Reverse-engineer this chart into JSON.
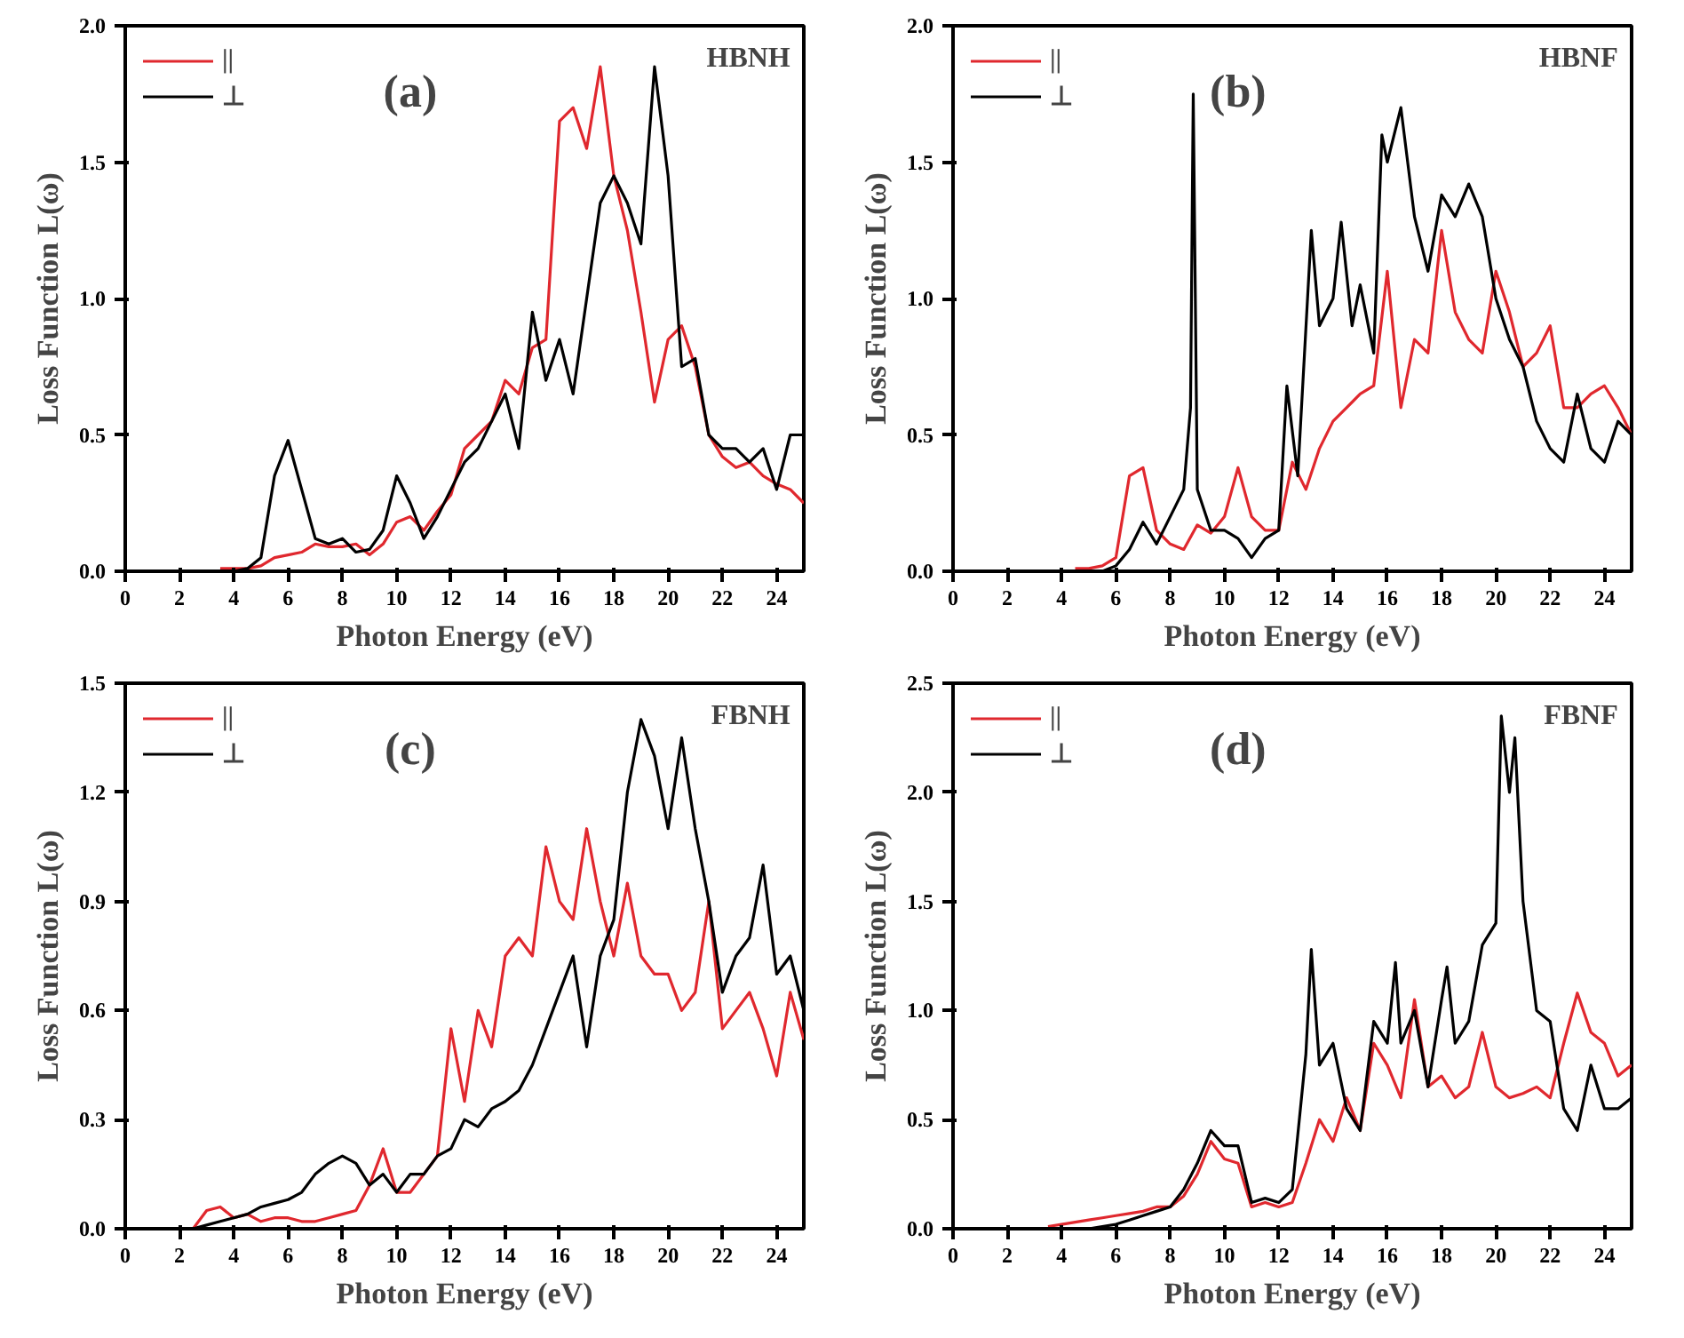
{
  "chart_data": [
    {
      "type": "line",
      "annotations": [
        "(a)",
        "HBNH"
      ],
      "xlabel": "Photon Energy (eV)",
      "ylabel": "Loss Function L(ω)",
      "xlim": [
        0,
        25
      ],
      "ylim": [
        0,
        2.0
      ],
      "xticks": [
        0,
        2,
        4,
        6,
        8,
        10,
        12,
        14,
        16,
        18,
        20,
        22,
        24
      ],
      "yticks": [
        {
          "value": 0,
          "label": "0.0"
        },
        0.5,
        {
          "value": 1,
          "label": "1.0"
        },
        1.5,
        {
          "value": 2,
          "label": "2.0"
        }
      ],
      "grid": false,
      "legend": "top left",
      "x": [
        3.5,
        4,
        4.5,
        5,
        5.5,
        6,
        6.5,
        7,
        7.5,
        8,
        8.5,
        9,
        9.5,
        10,
        10.5,
        11,
        11.5,
        12,
        12.5,
        13,
        13.5,
        14,
        14.5,
        15,
        15.5,
        16,
        16.5,
        17,
        17.5,
        18,
        18.5,
        19,
        19.5,
        20,
        20.5,
        21,
        21.5,
        22,
        22.5,
        23,
        23.5,
        24,
        24.5,
        25
      ],
      "series": [
        {
          "name": "||",
          "color": "#e0282e",
          "values": [
            0.01,
            0.01,
            0.01,
            0.02,
            0.05,
            0.06,
            0.07,
            0.1,
            0.09,
            0.09,
            0.1,
            0.06,
            0.1,
            0.18,
            0.2,
            0.15,
            0.22,
            0.28,
            0.45,
            0.5,
            0.55,
            0.7,
            0.65,
            0.82,
            0.85,
            1.65,
            1.7,
            1.55,
            1.85,
            1.45,
            1.25,
            0.95,
            0.62,
            0.85,
            0.9,
            0.75,
            0.5,
            0.42,
            0.38,
            0.4,
            0.35,
            0.32,
            0.3,
            0.25
          ]
        },
        {
          "name": "⊥",
          "color": "#000000",
          "values": [
            0,
            0,
            0.01,
            0.05,
            0.35,
            0.48,
            0.3,
            0.12,
            0.1,
            0.12,
            0.07,
            0.08,
            0.15,
            0.35,
            0.25,
            0.12,
            0.2,
            0.3,
            0.4,
            0.45,
            0.55,
            0.65,
            0.45,
            0.95,
            0.7,
            0.85,
            0.65,
            1.0,
            1.35,
            1.45,
            1.35,
            1.2,
            1.85,
            1.45,
            0.75,
            0.78,
            0.5,
            0.45,
            0.45,
            0.4,
            0.45,
            0.3,
            0.5,
            0.5
          ]
        }
      ]
    },
    {
      "type": "line",
      "annotations": [
        "(b)",
        "HBNF"
      ],
      "xlabel": "Photon Energy (eV)",
      "ylabel": "Loss Function L(ω)",
      "xlim": [
        0,
        25
      ],
      "ylim": [
        0,
        2.0
      ],
      "xticks": [
        0,
        2,
        4,
        6,
        8,
        10,
        12,
        14,
        16,
        18,
        20,
        22,
        24
      ],
      "yticks": [
        {
          "value": 0,
          "label": "0.0"
        },
        0.5,
        {
          "value": 1,
          "label": "1.0"
        },
        1.5,
        {
          "value": 2,
          "label": "2.0"
        }
      ],
      "grid": false,
      "legend": "top left",
      "x": [
        4.5,
        5,
        5.5,
        6,
        6.5,
        7,
        7.5,
        8,
        8.5,
        9,
        9.5,
        10,
        10.5,
        11,
        11.5,
        12,
        12.5,
        13,
        13.5,
        14,
        14.5,
        15,
        15.5,
        16,
        16.5,
        17,
        17.5,
        18,
        18.5,
        19,
        19.5,
        20,
        20.5,
        21,
        21.5,
        22,
        22.5,
        23,
        23.5,
        24,
        24.5,
        25
      ],
      "series": [
        {
          "name": "||",
          "color": "#e0282e",
          "values": [
            0.01,
            0.01,
            0.02,
            0.05,
            0.35,
            0.38,
            0.15,
            0.1,
            0.08,
            0.17,
            0.14,
            0.2,
            0.38,
            0.2,
            0.15,
            0.15,
            0.4,
            0.3,
            0.45,
            0.55,
            0.6,
            0.65,
            0.68,
            1.1,
            0.6,
            0.85,
            0.8,
            1.25,
            0.95,
            0.85,
            0.8,
            1.1,
            0.95,
            0.75,
            0.8,
            0.9,
            0.6,
            0.6,
            0.65,
            0.68,
            0.6,
            0.5
          ]
        },
        {
          "name": "⊥",
          "color": "#000000",
          "x": [
            4.5,
            5,
            5.5,
            6,
            6.5,
            7,
            7.5,
            8,
            8.5,
            8.75,
            8.85,
            9,
            9.5,
            10,
            10.5,
            11,
            11.5,
            12,
            12.3,
            12.7,
            13.2,
            13.5,
            14,
            14.3,
            14.7,
            15,
            15.5,
            15.8,
            16,
            16.5,
            17,
            17.5,
            18,
            18.5,
            19,
            19.5,
            20,
            20.5,
            21,
            21.5,
            22,
            22.5,
            23,
            23.5,
            24,
            24.5,
            25
          ],
          "values": [
            0,
            0,
            0,
            0.02,
            0.08,
            0.18,
            0.1,
            0.2,
            0.3,
            0.6,
            1.75,
            0.3,
            0.15,
            0.15,
            0.12,
            0.05,
            0.12,
            0.15,
            0.68,
            0.35,
            1.25,
            0.9,
            1.0,
            1.28,
            0.9,
            1.05,
            0.8,
            1.6,
            1.5,
            1.7,
            1.3,
            1.1,
            1.38,
            1.3,
            1.42,
            1.3,
            1.0,
            0.85,
            0.75,
            0.55,
            0.45,
            0.4,
            0.65,
            0.45,
            0.4,
            0.55,
            0.5
          ]
        }
      ]
    },
    {
      "type": "line",
      "annotations": [
        "(c)",
        "FBNH"
      ],
      "xlabel": "Photon Energy (eV)",
      "ylabel": "Loss Function L(ω)",
      "xlim": [
        0,
        25
      ],
      "ylim": [
        0,
        1.5
      ],
      "xticks": [
        0,
        2,
        4,
        6,
        8,
        10,
        12,
        14,
        16,
        18,
        20,
        22,
        24
      ],
      "yticks": [
        {
          "value": 0,
          "label": "0.0"
        },
        0.3,
        0.6,
        0.9,
        1.2,
        1.5
      ],
      "grid": false,
      "legend": "top left",
      "x": [
        2,
        2.5,
        3,
        3.5,
        4,
        4.5,
        5,
        5.5,
        6,
        6.5,
        7,
        7.5,
        8,
        8.5,
        9,
        9.5,
        10,
        10.5,
        11,
        11.5,
        12,
        12.5,
        13,
        13.5,
        14,
        14.5,
        15,
        15.5,
        16,
        16.5,
        17,
        17.5,
        18,
        18.5,
        19,
        19.5,
        20,
        20.5,
        21,
        21.5,
        22,
        22.5,
        23,
        23.5,
        24,
        24.5,
        25
      ],
      "series": [
        {
          "name": "||",
          "color": "#e0282e",
          "values": [
            0,
            0,
            0.05,
            0.06,
            0.03,
            0.04,
            0.02,
            0.03,
            0.03,
            0.02,
            0.02,
            0.03,
            0.04,
            0.05,
            0.12,
            0.22,
            0.1,
            0.1,
            0.15,
            0.2,
            0.55,
            0.35,
            0.6,
            0.5,
            0.75,
            0.8,
            0.75,
            1.05,
            0.9,
            0.85,
            1.1,
            0.9,
            0.75,
            0.95,
            0.75,
            0.7,
            0.7,
            0.6,
            0.65,
            0.9,
            0.55,
            0.6,
            0.65,
            0.55,
            0.42,
            0.65,
            0.52
          ]
        },
        {
          "name": "⊥",
          "color": "#000000",
          "values": [
            0,
            0,
            0.01,
            0.02,
            0.03,
            0.04,
            0.06,
            0.07,
            0.08,
            0.1,
            0.15,
            0.18,
            0.2,
            0.18,
            0.12,
            0.15,
            0.1,
            0.15,
            0.15,
            0.2,
            0.22,
            0.3,
            0.28,
            0.33,
            0.35,
            0.38,
            0.45,
            0.55,
            0.65,
            0.75,
            0.5,
            0.75,
            0.85,
            1.2,
            1.4,
            1.3,
            1.1,
            1.35,
            1.1,
            0.9,
            0.65,
            0.75,
            0.8,
            1.0,
            0.7,
            0.75,
            0.6
          ]
        }
      ]
    },
    {
      "type": "line",
      "annotations": [
        "(d)",
        "FBNF"
      ],
      "xlabel": "Photon Energy (eV)",
      "ylabel": "Loss Function L(ω)",
      "xlim": [
        0,
        25
      ],
      "ylim": [
        0,
        2.5
      ],
      "xticks": [
        0,
        2,
        4,
        6,
        8,
        10,
        12,
        14,
        16,
        18,
        20,
        22,
        24
      ],
      "yticks": [
        {
          "value": 0,
          "label": "0.0"
        },
        0.5,
        {
          "value": 1,
          "label": "1.0"
        },
        1.5,
        {
          "value": 2,
          "label": "2.0"
        },
        2.5
      ],
      "grid": false,
      "legend": "top left",
      "x": [
        3.5,
        4,
        4.5,
        5,
        5.5,
        6,
        6.5,
        7,
        7.5,
        8,
        8.5,
        9,
        9.5,
        10,
        10.5,
        11,
        11.5,
        12,
        12.5,
        13,
        13.5,
        14,
        14.5,
        15,
        15.5,
        16,
        16.5,
        17,
        17.5,
        18,
        18.5,
        19,
        19.5,
        20,
        20.5,
        21,
        21.5,
        22,
        22.5,
        23,
        23.5,
        24,
        24.5,
        25
      ],
      "series": [
        {
          "name": "||",
          "color": "#e0282e",
          "values": [
            0.01,
            0.02,
            0.03,
            0.04,
            0.05,
            0.06,
            0.07,
            0.08,
            0.1,
            0.1,
            0.15,
            0.25,
            0.4,
            0.32,
            0.3,
            0.1,
            0.12,
            0.1,
            0.12,
            0.3,
            0.5,
            0.4,
            0.6,
            0.45,
            0.85,
            0.75,
            0.6,
            1.05,
            0.65,
            0.7,
            0.6,
            0.65,
            0.9,
            0.65,
            0.6,
            0.62,
            0.65,
            0.6,
            0.85,
            1.08,
            0.9,
            0.85,
            0.7,
            0.75
          ]
        },
        {
          "name": "⊥",
          "color": "#000000",
          "x": [
            3.5,
            4,
            4.5,
            5,
            5.5,
            6,
            6.5,
            7,
            7.5,
            8,
            8.5,
            9,
            9.5,
            10,
            10.5,
            11,
            11.5,
            12,
            12.5,
            13,
            13.2,
            13.5,
            14,
            14.5,
            15,
            15.5,
            16,
            16.3,
            16.5,
            17,
            17.5,
            18,
            18.2,
            18.5,
            19,
            19.5,
            20,
            20.2,
            20.5,
            20.7,
            21,
            21.5,
            22,
            22.5,
            23,
            23.5,
            24,
            24.5,
            25
          ],
          "values": [
            0,
            0,
            0,
            0,
            0.01,
            0.02,
            0.04,
            0.06,
            0.08,
            0.1,
            0.18,
            0.3,
            0.45,
            0.38,
            0.38,
            0.12,
            0.14,
            0.12,
            0.18,
            0.8,
            1.28,
            0.75,
            0.85,
            0.55,
            0.45,
            0.95,
            0.85,
            1.22,
            0.85,
            1.0,
            0.65,
            1.05,
            1.2,
            0.85,
            0.95,
            1.3,
            1.4,
            2.35,
            2.0,
            2.25,
            1.5,
            1.0,
            0.95,
            0.55,
            0.45,
            0.75,
            0.55,
            0.55,
            0.6
          ]
        }
      ]
    }
  ]
}
